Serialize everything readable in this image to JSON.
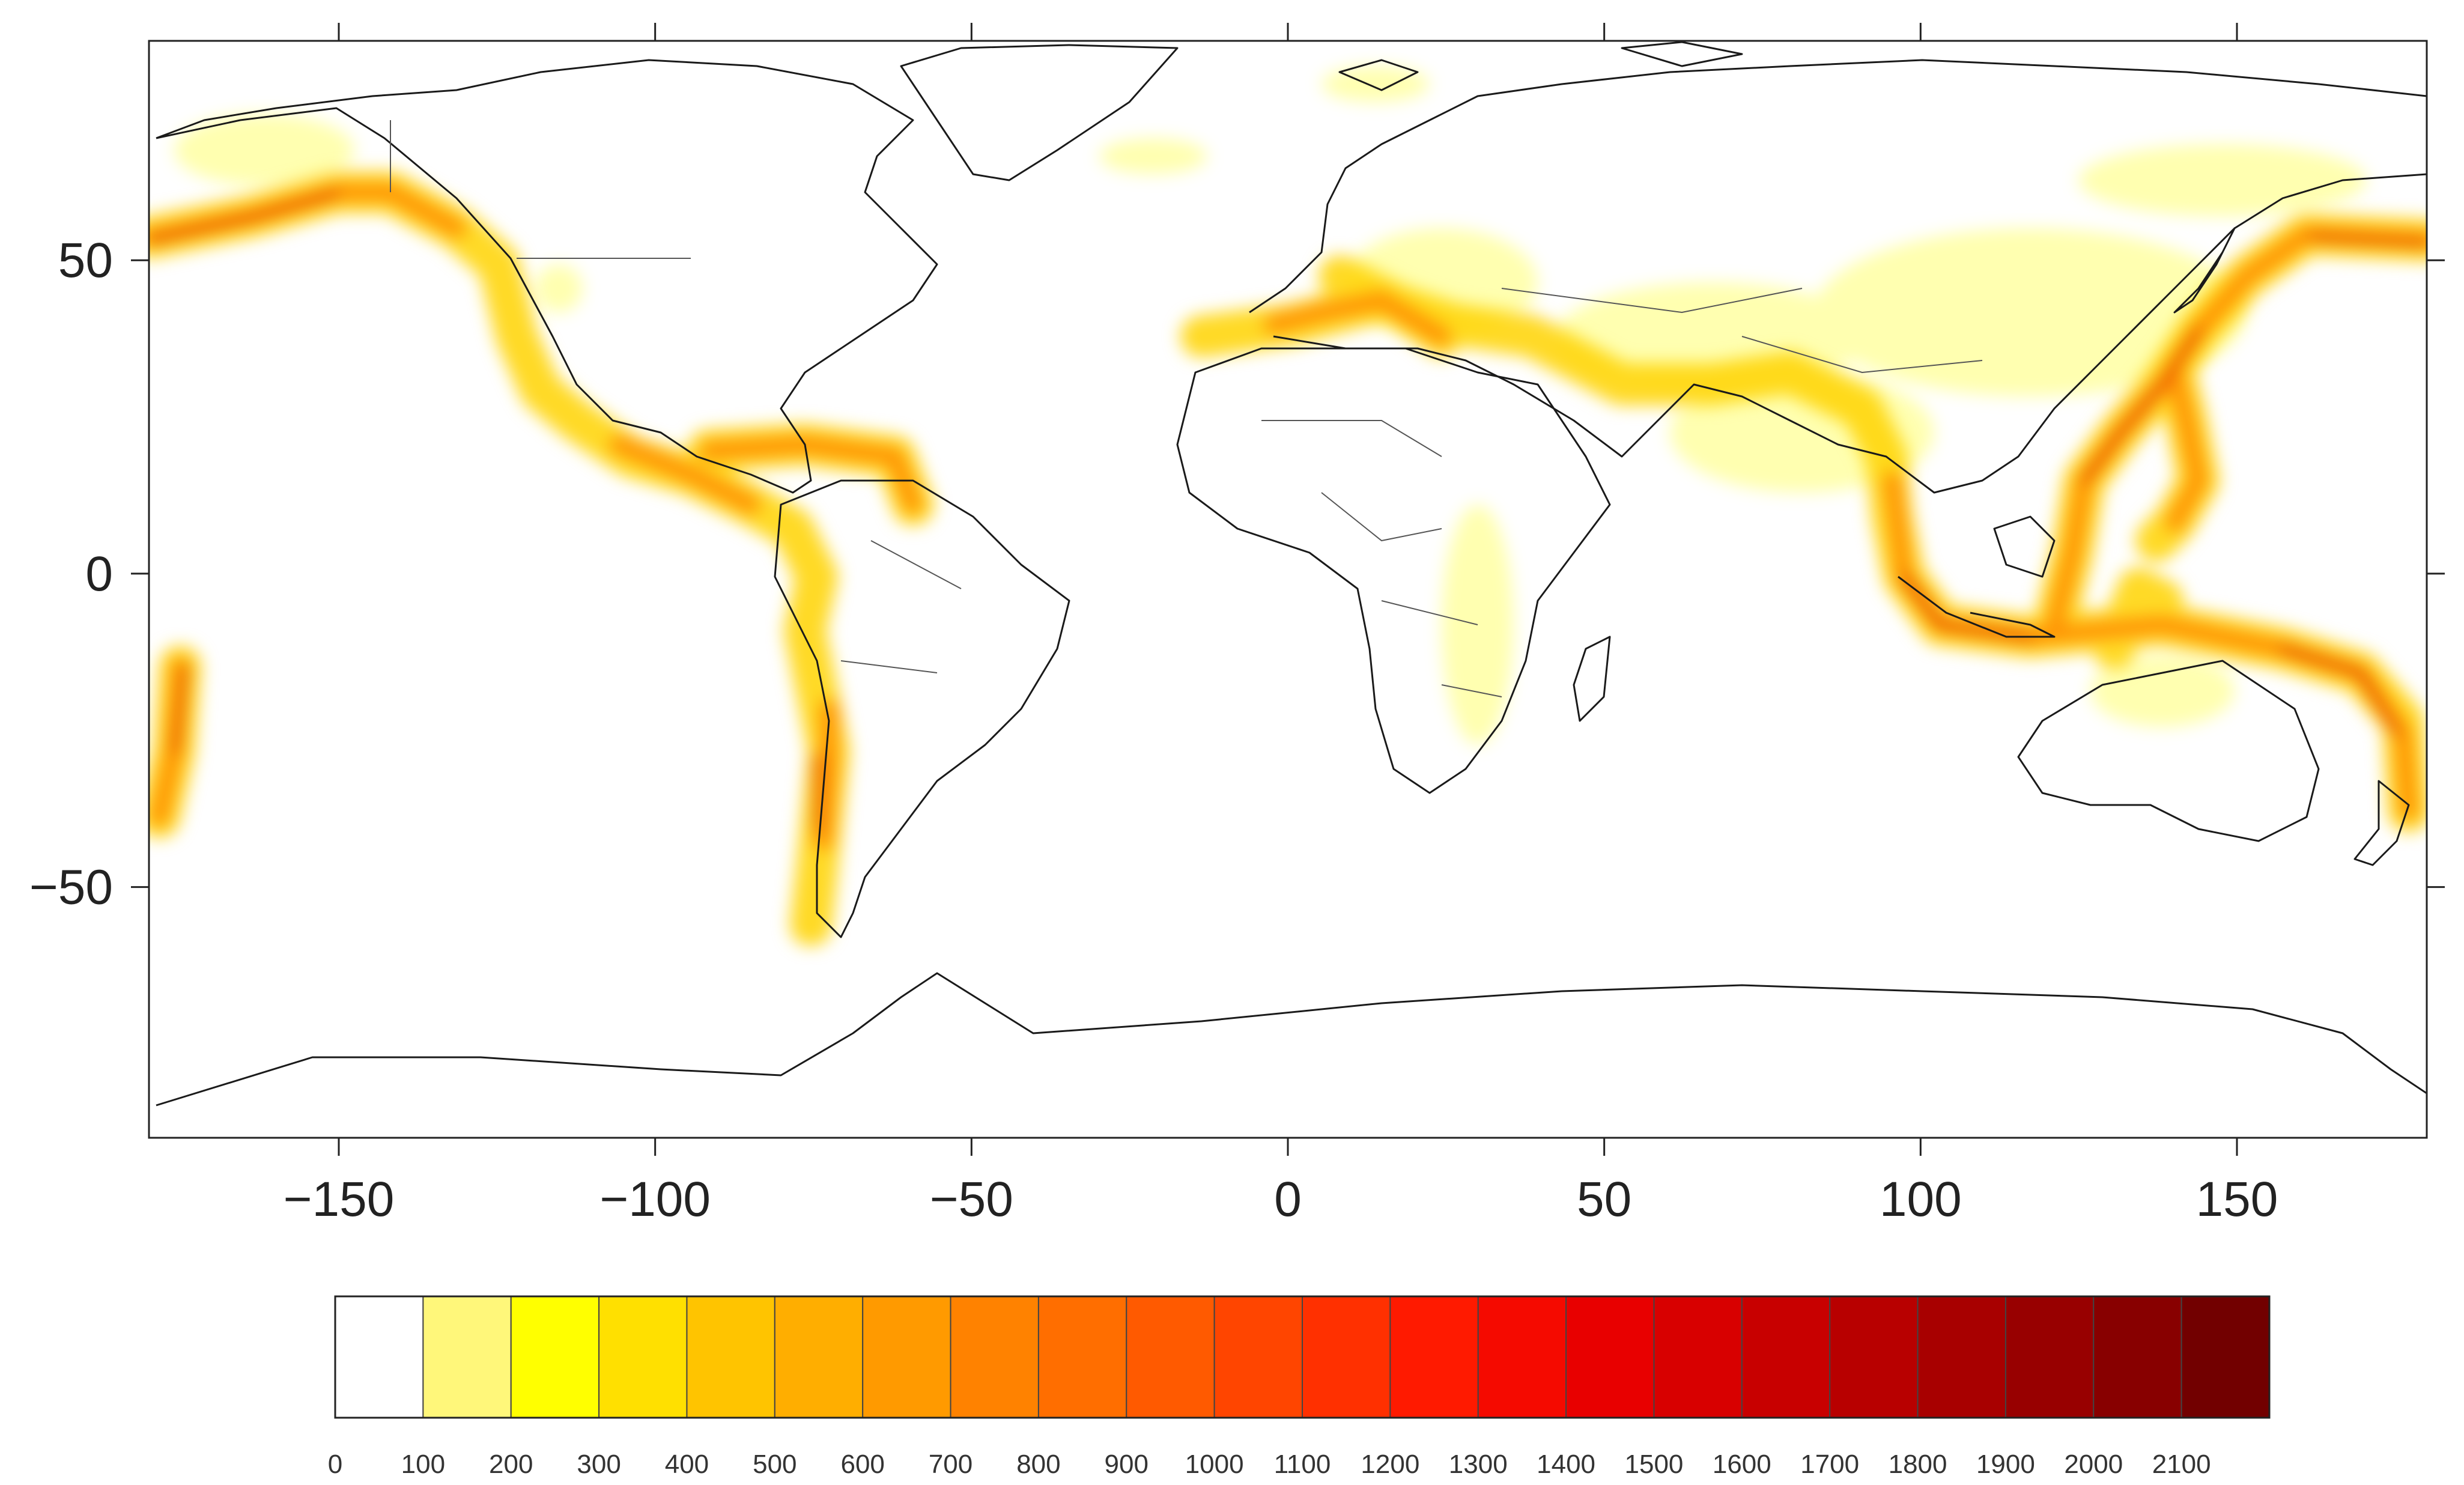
{
  "map": {
    "projection": "plate-carree",
    "x_range": [
      -180,
      180
    ],
    "y_range": [
      -90,
      85
    ],
    "x_ticks": [
      -150,
      -100,
      -50,
      0,
      50,
      100,
      150
    ],
    "y_ticks": [
      50,
      0,
      -50
    ],
    "coastline_color": "#1a1a1a",
    "border_color": "#555555"
  },
  "colorbar": {
    "labels": [
      "0",
      "100",
      "200",
      "300",
      "400",
      "500",
      "600",
      "700",
      "800",
      "900",
      "1000",
      "1100",
      "1200",
      "1300",
      "1400",
      "1500",
      "1600",
      "1700",
      "1800",
      "1900",
      "2000",
      "2100"
    ],
    "colors": [
      "#ffffff",
      "#fff77a",
      "#ffff00",
      "#ffe000",
      "#ffc400",
      "#ffae00",
      "#ff9a00",
      "#ff8200",
      "#ff6e00",
      "#ff5a00",
      "#ff4500",
      "#ff3000",
      "#ff1a00",
      "#f50a00",
      "#e80000",
      "#d80000",
      "#c80000",
      "#b80000",
      "#a80000",
      "#980000",
      "#880000",
      "#720000"
    ]
  }
}
